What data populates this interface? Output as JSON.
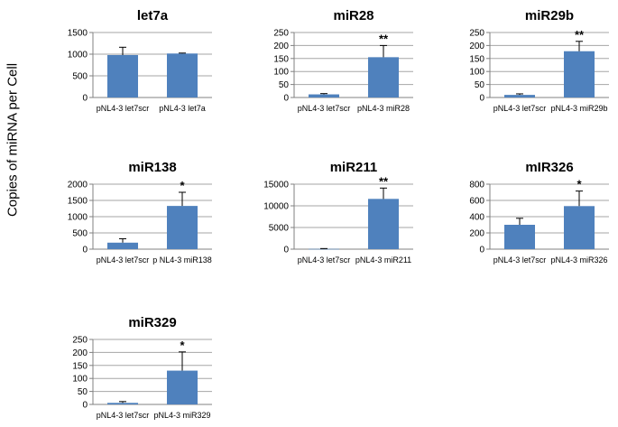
{
  "figure": {
    "ylabel": "Copies of miRNA per Cell",
    "bar_color": "#4F81BD",
    "grid_color": "#A6A6A6"
  },
  "chart_data": [
    {
      "type": "bar",
      "title": "let7a",
      "categories": [
        "pNL4-3 let7scr",
        "pNL4-3 let7a"
      ],
      "values": [
        980,
        1015
      ],
      "errors": [
        180,
        10
      ],
      "significance": [
        "",
        ""
      ],
      "ylim": [
        0,
        1500
      ],
      "yticks": [
        0,
        500,
        1000,
        1500
      ],
      "grid": true
    },
    {
      "type": "bar",
      "title": "miR28",
      "categories": [
        "pNL4-3 let7scr",
        "pNL4-3 miR28"
      ],
      "values": [
        12,
        155
      ],
      "errors": [
        3,
        45
      ],
      "significance": [
        "",
        "**"
      ],
      "ylim": [
        0,
        250
      ],
      "yticks": [
        0,
        50,
        100,
        150,
        200,
        250
      ],
      "grid": true
    },
    {
      "type": "bar",
      "title": "miR29b",
      "categories": [
        "pNL4-3 let7scr",
        "pNL4-3 miR29b"
      ],
      "values": [
        10,
        178
      ],
      "errors": [
        4,
        38
      ],
      "significance": [
        "",
        "**"
      ],
      "ylim": [
        0,
        250
      ],
      "yticks": [
        0,
        50,
        100,
        150,
        200,
        250
      ],
      "grid": true
    },
    {
      "type": "bar",
      "title": "miR138",
      "categories": [
        "pNL4-3 let7scr",
        "p NL4-3 miR138"
      ],
      "values": [
        200,
        1330
      ],
      "errors": [
        120,
        420
      ],
      "significance": [
        "",
        "*"
      ],
      "ylim": [
        0,
        2000
      ],
      "yticks": [
        0,
        500,
        1000,
        1500,
        2000
      ],
      "grid": true
    },
    {
      "type": "bar",
      "title": "miR211",
      "categories": [
        "pNL4-3 let7scr",
        "pNL4-3 miR211"
      ],
      "values": [
        60,
        11600
      ],
      "errors": [
        80,
        2500
      ],
      "significance": [
        "",
        "**"
      ],
      "ylim": [
        0,
        15000
      ],
      "yticks": [
        0,
        5000,
        10000,
        15000
      ],
      "grid": true
    },
    {
      "type": "bar",
      "title": "mIR326",
      "categories": [
        "pNL4-3 let7scr",
        "pNL4-3 miR326"
      ],
      "values": [
        300,
        530
      ],
      "errors": [
        80,
        185
      ],
      "significance": [
        "",
        "*"
      ],
      "ylim": [
        0,
        800
      ],
      "yticks": [
        0,
        200,
        400,
        600,
        800
      ],
      "grid": true
    },
    {
      "type": "bar",
      "title": "miR329",
      "categories": [
        "pNL4-3 let7scr",
        "pNL4-3 miR329"
      ],
      "values": [
        6,
        130
      ],
      "errors": [
        5,
        72
      ],
      "significance": [
        "",
        "*"
      ],
      "ylim": [
        0,
        250
      ],
      "yticks": [
        0,
        50,
        100,
        150,
        200,
        250
      ],
      "grid": true
    }
  ]
}
